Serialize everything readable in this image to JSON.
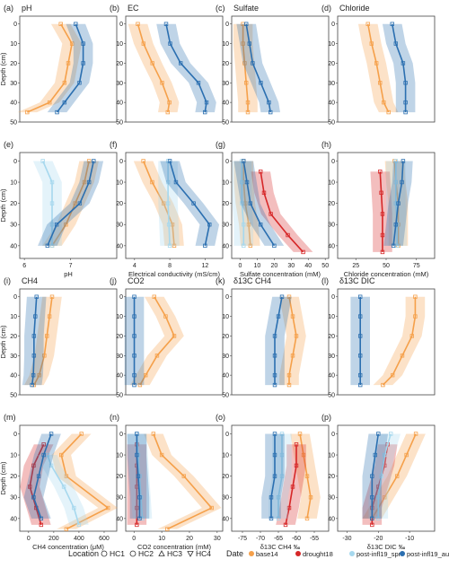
{
  "chart_data": [
    {
      "id": "a",
      "type": "line",
      "panel_label": "(a)",
      "title": "pH",
      "ylabel": "Depth (cm)",
      "xlim": [
        5.8,
        8.4
      ],
      "ylim": [
        50,
        -4
      ],
      "series": [
        {
          "color": "#f5a04a",
          "x": [
            6.9,
            7.2,
            7.1,
            7.0,
            6.6,
            6.0
          ],
          "y": [
            0,
            10,
            20,
            30,
            40,
            45
          ]
        },
        {
          "color": "#2b6fb0",
          "x": [
            7.3,
            7.5,
            7.5,
            7.4,
            7.0,
            6.8
          ],
          "y": [
            0,
            10,
            20,
            30,
            40,
            45
          ]
        }
      ]
    },
    {
      "id": "b",
      "type": "line",
      "panel_label": "(b)",
      "title": "EC",
      "xlim": [
        3,
        15
      ],
      "ylim": [
        50,
        -4
      ],
      "series": [
        {
          "color": "#f5a04a",
          "x": [
            4.5,
            5.2,
            6.3,
            7.5,
            8.4,
            8.2
          ],
          "y": [
            0,
            10,
            20,
            30,
            40,
            45
          ]
        },
        {
          "color": "#2b6fb0",
          "x": [
            8.0,
            8.5,
            9.8,
            12.0,
            13.0,
            12.8
          ],
          "y": [
            0,
            10,
            20,
            30,
            40,
            45
          ]
        }
      ]
    },
    {
      "id": "c",
      "type": "line",
      "panel_label": "(c)",
      "title": "Sulfate",
      "xlim": [
        -5,
        55
      ],
      "ylim": [
        50,
        -4
      ],
      "series": [
        {
          "color": "#f5a04a",
          "x": [
            2,
            2,
            3,
            4,
            5,
            5
          ],
          "y": [
            0,
            10,
            20,
            30,
            40,
            45
          ]
        },
        {
          "color": "#2b6fb0",
          "x": [
            4,
            6,
            8,
            13,
            18,
            19
          ],
          "y": [
            0,
            10,
            20,
            30,
            40,
            45
          ]
        }
      ]
    },
    {
      "id": "d",
      "type": "line",
      "panel_label": "(d)",
      "title": "Chloride",
      "xlim": [
        10,
        90
      ],
      "ylim": [
        50,
        -4
      ],
      "series": [
        {
          "color": "#f5a04a",
          "x": [
            35,
            38,
            42,
            45,
            48,
            52
          ],
          "y": [
            0,
            10,
            20,
            30,
            40,
            45
          ]
        },
        {
          "color": "#2b6fb0",
          "x": [
            55,
            58,
            64,
            66,
            66,
            66
          ],
          "y": [
            0,
            10,
            20,
            30,
            40,
            45
          ]
        }
      ]
    },
    {
      "id": "e",
      "type": "line",
      "panel_label": "(e)",
      "xlabel": "pH",
      "ylabel": "Depth (cm)",
      "xlim": [
        5.9,
        8.0
      ],
      "ylim": [
        46,
        -4
      ],
      "xticks": [
        6,
        7
      ],
      "series": [
        {
          "name": "base14",
          "color": "#f5a04a",
          "x": [
            7.4,
            7.3,
            7.1,
            6.9,
            6.6
          ],
          "y": [
            0,
            10,
            20,
            30,
            40
          ]
        },
        {
          "name": "post-infl19_spr",
          "color": "#a6d8ee",
          "x": [
            6.4,
            6.6,
            6.6,
            6.6,
            6.6
          ],
          "y": [
            0,
            10,
            20,
            30,
            40
          ]
        },
        {
          "name": "post-infl19_aut",
          "color": "#2b6fb0",
          "x": [
            7.5,
            7.4,
            7.2,
            6.7,
            6.5
          ],
          "y": [
            0,
            10,
            20,
            30,
            40
          ]
        }
      ]
    },
    {
      "id": "f",
      "type": "line",
      "panel_label": "(f)",
      "xlabel": "Electrical conductivity (mS/cm)",
      "xlim": [
        3,
        14
      ],
      "ylim": [
        46,
        -4
      ],
      "xticks": [
        4,
        8,
        12
      ],
      "series": [
        {
          "name": "base14",
          "color": "#f5a04a",
          "x": [
            5.0,
            6.0,
            7.3,
            8.3,
            8.5
          ],
          "y": [
            0,
            10,
            20,
            30,
            40
          ]
        },
        {
          "name": "post-infl19_spr",
          "color": "#a6d8ee",
          "x": [
            7.8,
            7.8,
            7.8,
            7.9,
            8.0
          ],
          "y": [
            0,
            10,
            20,
            30,
            40
          ]
        },
        {
          "name": "post-infl19_aut",
          "color": "#2b6fb0",
          "x": [
            8.0,
            8.7,
            10.7,
            12.5,
            12.0
          ],
          "y": [
            0,
            10,
            20,
            30,
            40
          ]
        }
      ]
    },
    {
      "id": "g",
      "type": "line",
      "panel_label": "(g)",
      "xlabel": "Sulfate concentration (mM)",
      "xlim": [
        -5,
        52
      ],
      "ylim": [
        46,
        -4
      ],
      "xticks": [
        0,
        10,
        20,
        30,
        40,
        50
      ],
      "series": [
        {
          "name": "base14",
          "color": "#f5a04a",
          "x": [
            2,
            2,
            3,
            5,
            6
          ],
          "y": [
            0,
            10,
            20,
            30,
            40
          ]
        },
        {
          "name": "drought18",
          "color": "#d62728",
          "x": [
            12,
            14,
            18,
            28,
            37
          ],
          "y": [
            5,
            15,
            25,
            35,
            43
          ]
        },
        {
          "name": "post-infl19_spr",
          "color": "#a6d8ee",
          "x": [
            1,
            1,
            1,
            2,
            2
          ],
          "y": [
            0,
            10,
            20,
            30,
            40
          ]
        },
        {
          "name": "post-infl19_aut",
          "color": "#2b6fb0",
          "x": [
            2,
            4,
            6,
            12,
            20
          ],
          "y": [
            0,
            10,
            20,
            30,
            40
          ]
        }
      ]
    },
    {
      "id": "h",
      "type": "line",
      "panel_label": "(h)",
      "xlabel": "Chloride concentration (mM)",
      "xlim": [
        10,
        90
      ],
      "ylim": [
        46,
        -4
      ],
      "xticks": [
        25,
        50,
        75
      ],
      "series": [
        {
          "name": "base14",
          "color": "#f5a04a",
          "x": [
            57,
            58,
            60,
            60,
            60
          ],
          "y": [
            0,
            10,
            20,
            30,
            40
          ]
        },
        {
          "name": "drought18",
          "color": "#d62728",
          "x": [
            45,
            46,
            47,
            47,
            47
          ],
          "y": [
            5,
            15,
            25,
            35,
            43
          ]
        },
        {
          "name": "post-infl19_spr",
          "color": "#a6d8ee",
          "x": [
            58,
            58,
            58,
            59,
            59
          ],
          "y": [
            0,
            10,
            20,
            30,
            40
          ]
        },
        {
          "name": "post-infl19_aut",
          "color": "#2b6fb0",
          "x": [
            64,
            63,
            60,
            58,
            56
          ],
          "y": [
            0,
            10,
            20,
            30,
            40
          ]
        }
      ]
    },
    {
      "id": "i",
      "type": "line",
      "panel_label": "(i)",
      "title": "CH4",
      "ylabel": "Depth (cm)",
      "xlim": [
        -50,
        700
      ],
      "ylim": [
        50,
        -4
      ],
      "series": [
        {
          "color": "#f5a04a",
          "x": [
            200,
            180,
            160,
            140,
            100,
            60
          ],
          "y": [
            0,
            10,
            20,
            30,
            40,
            45
          ]
        },
        {
          "color": "#2b6fb0",
          "x": [
            80,
            70,
            60,
            60,
            55,
            45
          ],
          "y": [
            0,
            10,
            20,
            30,
            40,
            45
          ]
        }
      ]
    },
    {
      "id": "j",
      "type": "line",
      "panel_label": "(j)",
      "title": "CO2",
      "xlim": [
        -2,
        32
      ],
      "ylim": [
        50,
        -4
      ],
      "series": [
        {
          "color": "#f5a04a",
          "x": [
            8,
            12,
            15,
            9,
            5,
            3
          ],
          "y": [
            0,
            10,
            20,
            30,
            40,
            45
          ]
        },
        {
          "color": "#2b6fb0",
          "x": [
            1,
            1,
            1,
            1,
            1,
            1
          ],
          "y": [
            0,
            10,
            20,
            30,
            40,
            45
          ]
        }
      ]
    },
    {
      "id": "k",
      "type": "line",
      "panel_label": "(k)",
      "title": "δ13C CH4",
      "xlim": [
        -78,
        -51
      ],
      "ylim": [
        50,
        -4
      ],
      "series": [
        {
          "color": "#f5a04a",
          "x": [
            -62,
            -61,
            -60,
            -61,
            -62,
            -62
          ],
          "y": [
            0,
            10,
            20,
            30,
            40,
            45
          ]
        },
        {
          "color": "#2b6fb0",
          "x": [
            -64,
            -65,
            -66,
            -66,
            -66,
            -66
          ],
          "y": [
            0,
            10,
            20,
            30,
            40,
            45
          ]
        }
      ]
    },
    {
      "id": "l",
      "type": "line",
      "panel_label": "(l)",
      "title": "δ13C DIC",
      "xlim": [
        -32,
        -2
      ],
      "ylim": [
        50,
        -4
      ],
      "series": [
        {
          "color": "#f5a04a",
          "x": [
            -8,
            -8,
            -9,
            -12,
            -15,
            -18
          ],
          "y": [
            0,
            10,
            20,
            30,
            40,
            45
          ]
        },
        {
          "color": "#2b6fb0",
          "x": [
            -25,
            -25,
            -25,
            -25,
            -25,
            -25
          ],
          "y": [
            0,
            10,
            20,
            30,
            40,
            45
          ]
        }
      ]
    },
    {
      "id": "m",
      "type": "line",
      "panel_label": "(m)",
      "xlabel": "CH4 concentration (μM)",
      "ylabel": "Depth (cm)",
      "xlim": [
        -70,
        700
      ],
      "ylim": [
        46,
        -4
      ],
      "xticks": [
        0,
        200,
        400,
        600
      ],
      "series": [
        {
          "name": "base14",
          "color": "#f5a04a",
          "x": [
            420,
            260,
            300,
            630,
            300
          ],
          "y": [
            0,
            10,
            20,
            35,
            45
          ]
        },
        {
          "name": "drought18",
          "color": "#d62728",
          "x": [
            120,
            40,
            10,
            60,
            100
          ],
          "y": [
            5,
            15,
            25,
            35,
            43
          ]
        },
        {
          "name": "post-infl19_spr",
          "color": "#a6d8ee",
          "x": [
            150,
            180,
            280,
            360,
            400
          ],
          "y": [
            10,
            15,
            25,
            35,
            43
          ]
        },
        {
          "name": "post-infl19_aut",
          "color": "#2b6fb0",
          "x": [
            180,
            120,
            80,
            40,
            100
          ],
          "y": [
            0,
            10,
            20,
            30,
            40
          ]
        }
      ]
    },
    {
      "id": "n",
      "type": "line",
      "panel_label": "(n)",
      "xlabel": "CO2 concentration (mM)",
      "xlim": [
        -3,
        32
      ],
      "ylim": [
        46,
        -4
      ],
      "xticks": [
        0,
        10,
        20,
        30
      ],
      "series": [
        {
          "name": "base14",
          "color": "#f5a04a",
          "x": [
            7,
            10,
            18,
            28,
            12
          ],
          "y": [
            0,
            10,
            20,
            35,
            45
          ]
        },
        {
          "name": "drought18",
          "color": "#d62728",
          "x": [
            1,
            1,
            1,
            1,
            1
          ],
          "y": [
            5,
            15,
            25,
            35,
            43
          ]
        },
        {
          "name": "post-infl19_spr",
          "color": "#a6d8ee",
          "x": [
            1,
            1.5,
            2,
            2.5,
            3
          ],
          "y": [
            0,
            10,
            20,
            30,
            40
          ]
        },
        {
          "name": "post-infl19_aut",
          "color": "#2b6fb0",
          "x": [
            1,
            1,
            1.5,
            2,
            2
          ],
          "y": [
            0,
            10,
            20,
            30,
            40
          ]
        }
      ]
    },
    {
      "id": "o",
      "type": "line",
      "panel_label": "(o)",
      "xlabel": "δ13C CH4 ‰",
      "xlim": [
        -78,
        -51
      ],
      "ylim": [
        46,
        -4
      ],
      "xticks": [
        -75,
        -70,
        -65,
        -60,
        -55
      ],
      "series": [
        {
          "name": "base14",
          "color": "#f5a04a",
          "x": [
            -59,
            -58,
            -57,
            -56,
            -57
          ],
          "y": [
            0,
            10,
            20,
            30,
            40
          ]
        },
        {
          "name": "drought18",
          "color": "#d62728",
          "x": [
            -60,
            -60,
            -61,
            -62,
            -63
          ],
          "y": [
            5,
            15,
            25,
            35,
            43
          ]
        },
        {
          "name": "post-infl19_spr",
          "color": "#a6d8ee",
          "x": [
            -64,
            -64,
            -64,
            -65,
            -65
          ],
          "y": [
            0,
            10,
            20,
            30,
            40
          ]
        },
        {
          "name": "post-infl19_aut",
          "color": "#2b6fb0",
          "x": [
            -66,
            -66,
            -66,
            -67,
            -67
          ],
          "y": [
            0,
            10,
            20,
            30,
            40
          ]
        }
      ]
    },
    {
      "id": "p",
      "type": "line",
      "panel_label": "(p)",
      "xlabel": "δ13C DIC ‰",
      "xlim": [
        -33,
        -2
      ],
      "ylim": [
        46,
        -4
      ],
      "xticks": [
        -30,
        -20,
        -10
      ],
      "series": [
        {
          "name": "base14",
          "color": "#f5a04a",
          "x": [
            -8,
            -11,
            -14,
            -18,
            -22
          ],
          "y": [
            0,
            10,
            20,
            30,
            40
          ]
        },
        {
          "name": "drought18",
          "color": "#d62728",
          "x": [
            -17,
            -18,
            -20,
            -22,
            -22
          ],
          "y": [
            5,
            15,
            25,
            35,
            43
          ]
        },
        {
          "name": "post-infl19_spr",
          "color": "#a6d8ee",
          "x": [
            -16,
            -18,
            -19,
            -20,
            -20
          ],
          "y": [
            0,
            10,
            20,
            30,
            40
          ]
        },
        {
          "name": "post-infl19_aut",
          "color": "#2b6fb0",
          "x": [
            -20,
            -21,
            -22,
            -22,
            -22
          ],
          "y": [
            0,
            10,
            20,
            30,
            40
          ]
        }
      ]
    }
  ],
  "legend": {
    "location_title": "Location",
    "locations": [
      "HC1",
      "HC2",
      "HC3",
      "HC4"
    ],
    "date_title": "Date",
    "dates": [
      "base14",
      "drought18",
      "post-infl19_spr",
      "post-infl19_aut"
    ],
    "date_colors": [
      "#f5a04a",
      "#d62728",
      "#a6d8ee",
      "#2b6fb0"
    ]
  }
}
